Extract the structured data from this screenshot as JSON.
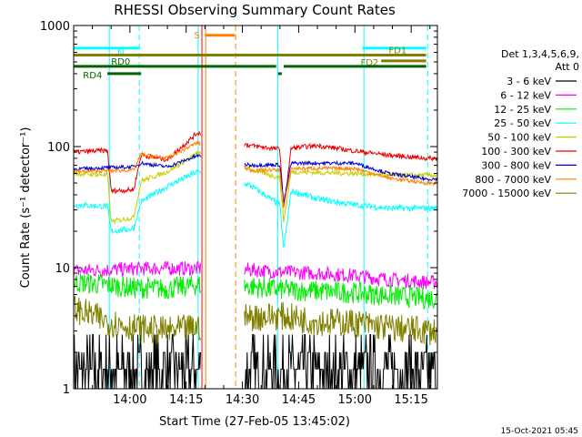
{
  "chart_data": {
    "type": "line",
    "title": "RHESSI Observing Summary Count Rates",
    "xlabel": "Start Time (27-Feb-05 13:45:02)",
    "ylabel": "Count Rate (s⁻¹ detector⁻¹)",
    "y_scale": "log",
    "ylim": [
      1,
      1000
    ],
    "y_ticks": [
      {
        "v": 1,
        "label": "1"
      },
      {
        "v": 10,
        "label": "10"
      },
      {
        "v": 100,
        "label": "100"
      },
      {
        "v": 1000,
        "label": "1000"
      }
    ],
    "xlim_min": [
      0,
      97
    ],
    "x_ticks": [
      {
        "t": 15,
        "label": "14:00"
      },
      {
        "t": 30,
        "label": "14:15"
      },
      {
        "t": 45,
        "label": "14:30"
      },
      {
        "t": 60,
        "label": "14:45"
      },
      {
        "t": 75,
        "label": "15:00"
      },
      {
        "t": 90,
        "label": "15:15"
      }
    ],
    "legend_header": [
      "Det 1,3,4,5,6,9,",
      "Att 0"
    ],
    "series": [
      {
        "name": "3 - 6 keV",
        "color": "#000000",
        "values": [
          [
            0,
            1.6
          ],
          [
            9,
            1.6
          ],
          [
            16,
            1.6
          ],
          [
            25,
            1.6
          ],
          [
            33,
            1.6
          ],
          [
            47,
            1.6
          ],
          [
            55,
            1.6
          ],
          [
            65,
            1.6
          ],
          [
            75,
            1.6
          ],
          [
            84,
            1.6
          ],
          [
            94,
            1.6
          ]
        ]
      },
      {
        "name": "6 - 12 keV",
        "color": "#ff00ff",
        "values": [
          [
            0,
            9.4
          ],
          [
            9,
            9.6
          ],
          [
            16,
            9.8
          ],
          [
            25,
            9.9
          ],
          [
            33,
            9.8
          ],
          [
            47,
            9.6
          ],
          [
            55,
            9.2
          ],
          [
            65,
            9.0
          ],
          [
            75,
            8.6
          ],
          [
            84,
            8.0
          ],
          [
            94,
            7.6
          ]
        ]
      },
      {
        "name": "12 - 25 keV",
        "color": "#00ee00",
        "values": [
          [
            0,
            7.6
          ],
          [
            9,
            7.2
          ],
          [
            16,
            6.8
          ],
          [
            25,
            6.7
          ],
          [
            33,
            7.2
          ],
          [
            47,
            7.0
          ],
          [
            55,
            6.6
          ],
          [
            65,
            6.4
          ],
          [
            75,
            6.2
          ],
          [
            84,
            5.9
          ],
          [
            94,
            5.6
          ]
        ]
      },
      {
        "name": "25 - 50 keV",
        "color": "#00ffff",
        "values": [
          [
            0,
            33
          ],
          [
            9,
            32
          ],
          [
            10,
            20
          ],
          [
            16,
            21
          ],
          [
            18,
            35
          ],
          [
            25,
            47
          ],
          [
            33,
            62
          ],
          [
            47,
            48
          ],
          [
            55,
            33
          ],
          [
            56,
            14
          ],
          [
            58,
            43
          ],
          [
            65,
            37
          ],
          [
            75,
            33
          ],
          [
            84,
            31
          ],
          [
            94,
            31
          ]
        ]
      },
      {
        "name": "50 - 100 keV",
        "color": "#cccc00",
        "values": [
          [
            0,
            60
          ],
          [
            9,
            58
          ],
          [
            10,
            24
          ],
          [
            16,
            26
          ],
          [
            18,
            52
          ],
          [
            25,
            62
          ],
          [
            33,
            88
          ],
          [
            47,
            65
          ],
          [
            55,
            55
          ],
          [
            56,
            24
          ],
          [
            58,
            62
          ],
          [
            65,
            61
          ],
          [
            75,
            60
          ],
          [
            84,
            58
          ],
          [
            94,
            58
          ]
        ]
      },
      {
        "name": "100 - 300 keV",
        "color": "#ee0000",
        "values": [
          [
            0,
            90
          ],
          [
            9,
            93
          ],
          [
            10,
            43
          ],
          [
            16,
            44
          ],
          [
            18,
            85
          ],
          [
            25,
            78
          ],
          [
            33,
            130
          ],
          [
            47,
            102
          ],
          [
            55,
            95
          ],
          [
            56,
            30
          ],
          [
            58,
            97
          ],
          [
            65,
            102
          ],
          [
            75,
            92
          ],
          [
            84,
            85
          ],
          [
            94,
            80
          ]
        ]
      },
      {
        "name": "300 - 800 keV",
        "color": "#0000cc",
        "values": [
          [
            0,
            65
          ],
          [
            9,
            67
          ],
          [
            16,
            68
          ],
          [
            18,
            73
          ],
          [
            25,
            68
          ],
          [
            33,
            84
          ],
          [
            47,
            70
          ],
          [
            55,
            71
          ],
          [
            56,
            34
          ],
          [
            58,
            73
          ],
          [
            65,
            73
          ],
          [
            75,
            73
          ],
          [
            84,
            60
          ],
          [
            94,
            54
          ]
        ]
      },
      {
        "name": "800 - 7000 keV",
        "color": "#ff8000",
        "values": [
          [
            0,
            62
          ],
          [
            9,
            63
          ],
          [
            16,
            64
          ],
          [
            18,
            86
          ],
          [
            25,
            80
          ],
          [
            33,
            108
          ],
          [
            47,
            64
          ],
          [
            55,
            64
          ],
          [
            56,
            31
          ],
          [
            58,
            66
          ],
          [
            65,
            66
          ],
          [
            75,
            66
          ],
          [
            84,
            55
          ],
          [
            94,
            50
          ]
        ]
      },
      {
        "name": "7000 - 15000 keV",
        "color": "#808000",
        "values": [
          [
            0,
            4.6
          ],
          [
            9,
            3.6
          ],
          [
            16,
            3.2
          ],
          [
            25,
            3.0
          ],
          [
            33,
            3.2
          ],
          [
            47,
            3.9
          ],
          [
            55,
            4.0
          ],
          [
            65,
            3.6
          ],
          [
            75,
            3.5
          ],
          [
            84,
            3.2
          ],
          [
            94,
            3.0
          ]
        ]
      }
    ],
    "annotations": [
      {
        "label": "N",
        "color": "#00ffff",
        "t0": 0,
        "t1": 17.5,
        "y": 650
      },
      {
        "label": "N",
        "color": "#00ffff",
        "t0": 77,
        "t1": 94,
        "y": 650
      },
      {
        "label": "S",
        "color": "#ff8000",
        "t0": 35,
        "t1": 43,
        "y": 830
      },
      {
        "label": "FD1",
        "color": "#808000",
        "t0": 0,
        "t1": 94,
        "y": 570
      },
      {
        "label": "FD2",
        "color": "#808000",
        "t0": 82,
        "t1": 94,
        "y": 510
      },
      {
        "label": "RD0",
        "color": "#006400",
        "t0": 0,
        "t1": 54,
        "y": 460
      },
      {
        "label": "RD0",
        "color": "#006400",
        "t0": 56,
        "t1": 94,
        "y": 460
      },
      {
        "label": "RD4",
        "color": "#006400",
        "t0": 9,
        "t1": 18,
        "y": 400
      },
      {
        "label": "RD4",
        "color": "#006400",
        "t0": 54.5,
        "t1": 55.5,
        "y": 400
      }
    ],
    "vertical_markers": [
      {
        "t": 0,
        "color": "#00ffff",
        "style": "solid"
      },
      {
        "t": 9.5,
        "color": "#00ffff",
        "style": "solid"
      },
      {
        "t": 17.5,
        "color": "#00ffff",
        "style": "dashed"
      },
      {
        "t": 33.2,
        "color": "#00ffff",
        "style": "solid"
      },
      {
        "t": 34.2,
        "color": "#ff0000",
        "style": "solid"
      },
      {
        "t": 35.2,
        "color": "#ff8000",
        "style": "solid"
      },
      {
        "t": 43.2,
        "color": "#ff8000",
        "style": "dashed"
      },
      {
        "t": 54.4,
        "color": "#00ffff",
        "style": "solid"
      },
      {
        "t": 77.4,
        "color": "#00ffff",
        "style": "solid"
      },
      {
        "t": 94.4,
        "color": "#00ffff",
        "style": "dashed"
      }
    ],
    "gaps": [
      [
        34,
        45.5
      ]
    ],
    "timestamp": "15-Oct-2021 05:45"
  }
}
